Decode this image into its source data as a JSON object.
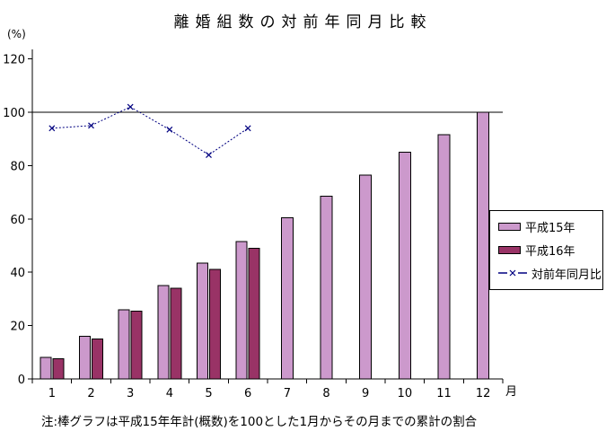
{
  "page": {
    "title": "離婚組数の対前年同月比較",
    "y_unit_label": "(%)",
    "x_unit_label": "月",
    "footnote": "注:棒グラフは平成15年年計(概数)を100とした1月からその月までの累計の割合"
  },
  "chart_data": {
    "type": "bar",
    "title": "離婚組数の対前年同月比較",
    "xlabel": "月",
    "ylabel": "(%)",
    "categories": [
      "1",
      "2",
      "3",
      "4",
      "5",
      "6",
      "7",
      "8",
      "9",
      "10",
      "11",
      "12"
    ],
    "series": [
      {
        "name": "平成15年",
        "type": "bar",
        "color": "#CC99CC",
        "values": [
          8,
          16,
          26,
          35,
          43.5,
          51.5,
          60.5,
          68.5,
          76.5,
          85,
          91.5,
          100
        ]
      },
      {
        "name": "平成16年",
        "type": "bar",
        "color": "#993366",
        "values": [
          7.5,
          15,
          25.5,
          34,
          41,
          49,
          null,
          null,
          null,
          null,
          null,
          null
        ]
      },
      {
        "name": "対前年同月比",
        "type": "line",
        "marker": "x",
        "line_style": "dashed",
        "color": "#000080",
        "values": [
          94,
          95,
          102,
          93.5,
          84,
          94,
          null,
          null,
          null,
          null,
          null,
          null
        ]
      }
    ],
    "ylim": [
      0,
      120
    ],
    "yticks": [
      0,
      20,
      40,
      60,
      80,
      100,
      120
    ],
    "reference_line": 100,
    "grid": false,
    "legend_position": "middle-right",
    "axis_color": "#000000",
    "background_color": "#FFFFFF"
  }
}
